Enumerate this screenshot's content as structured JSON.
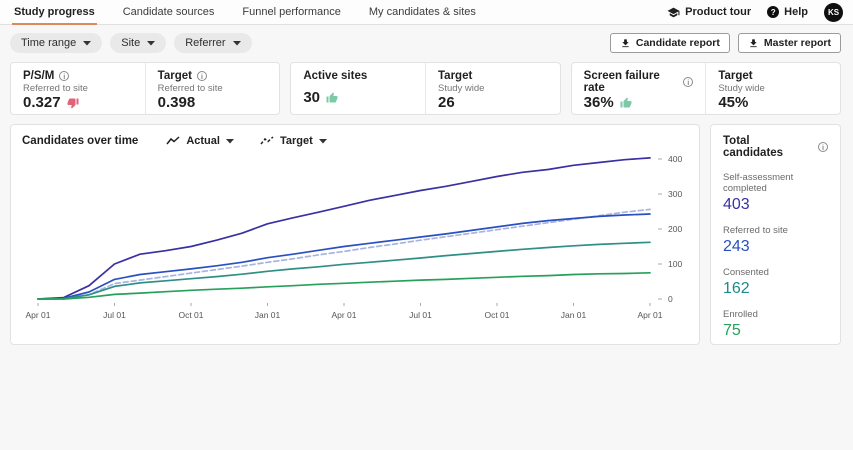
{
  "colors": {
    "accent": "#dd8a5b",
    "thumb_up": "#7cc9a5",
    "thumb_down": "#e06379"
  },
  "header": {
    "tabs": [
      {
        "label": "Study progress"
      },
      {
        "label": "Candidate sources"
      },
      {
        "label": "Funnel performance"
      },
      {
        "label": "My candidates & sites"
      }
    ],
    "product_tour_label": "Product tour",
    "help_label": "Help",
    "avatar_initials": "KS"
  },
  "toolbar": {
    "filters": [
      {
        "label": "Time range"
      },
      {
        "label": "Site"
      },
      {
        "label": "Referrer"
      }
    ],
    "candidate_report_label": "Candidate report",
    "master_report_label": "Master report"
  },
  "kpis": [
    {
      "label": "P/S/M",
      "subtitle": "Referred to site",
      "value": "0.327",
      "sentiment": "down",
      "target_label": "Target",
      "target_subtitle": "Referred to site",
      "target_value": "0.398"
    },
    {
      "label": "Active sites",
      "subtitle": "",
      "value": "30",
      "sentiment": "up",
      "target_label": "Target",
      "target_subtitle": "Study wide",
      "target_value": "26"
    },
    {
      "label": "Screen failure rate",
      "subtitle": "",
      "value": "36%",
      "sentiment": "up",
      "target_label": "Target",
      "target_subtitle": "Study wide",
      "target_value": "45%"
    }
  ],
  "chart": {
    "title": "Candidates over time",
    "actual_dropdown_label": "Actual",
    "target_dropdown_label": "Target"
  },
  "chart_data": {
    "type": "line",
    "title": "Candidates over time",
    "x_tick_labels": [
      "Apr 01",
      "Jul 01",
      "Oct 01",
      "Jan 01",
      "Apr 01",
      "Jul 01",
      "Oct 01",
      "Jan 01",
      "Apr 01"
    ],
    "months_per_tick": 3,
    "ylim": [
      0,
      400
    ],
    "y_ticks": [
      0,
      100,
      200,
      300,
      400
    ],
    "grid": false,
    "legend_position": "none",
    "y_axis_side": "right",
    "series": [
      {
        "name": "Self-assessment completed",
        "color": "#3a30a2",
        "style": "solid",
        "values": [
          0,
          4,
          38,
          100,
          128,
          138,
          150,
          168,
          188,
          215,
          232,
          248,
          265,
          282,
          296,
          310,
          322,
          336,
          350,
          362,
          370,
          382,
          390,
          398,
          403
        ]
      },
      {
        "name": "Referred to site",
        "color": "#2a50c0",
        "style": "solid",
        "values": [
          0,
          2,
          20,
          56,
          70,
          78,
          86,
          95,
          105,
          118,
          128,
          139,
          150,
          159,
          168,
          177,
          186,
          196,
          206,
          216,
          224,
          230,
          236,
          240,
          243
        ]
      },
      {
        "name": "Target",
        "color": "#a8b4e0",
        "style": "dashed",
        "values": [
          0,
          0,
          12,
          44,
          54,
          64,
          74,
          84,
          94,
          105,
          115,
          126,
          136,
          147,
          157,
          168,
          178,
          188,
          198,
          208,
          218,
          228,
          238,
          248,
          256
        ]
      },
      {
        "name": "Consented",
        "color": "#2e8f86",
        "style": "solid",
        "values": [
          0,
          1,
          12,
          36,
          46,
          52,
          58,
          64,
          71,
          79,
          86,
          92,
          99,
          105,
          111,
          117,
          124,
          130,
          136,
          142,
          147,
          152,
          156,
          159,
          162
        ]
      },
      {
        "name": "Enrolled",
        "color": "#27a05a",
        "style": "solid",
        "values": [
          0,
          0,
          5,
          13,
          17,
          21,
          25,
          28,
          31,
          35,
          38,
          42,
          45,
          48,
          51,
          54,
          56,
          59,
          62,
          65,
          67,
          70,
          72,
          73,
          75
        ]
      }
    ]
  },
  "totals": {
    "title": "Total candidates",
    "items": [
      {
        "label": "Self-assessment completed",
        "value": "403",
        "color": "#3a30a2"
      },
      {
        "label": "Referred to site",
        "value": "243",
        "color": "#2a50c0"
      },
      {
        "label": "Consented",
        "value": "162",
        "color": "#1d8a8a"
      },
      {
        "label": "Enrolled",
        "value": "75",
        "color": "#27a05a"
      }
    ]
  }
}
